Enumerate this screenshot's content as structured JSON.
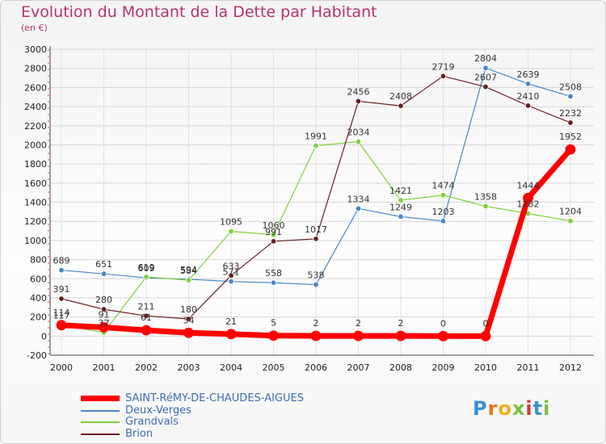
{
  "title": "Evolution du Montant de la Dette par Habitant",
  "subtitle": "(en €)",
  "logo_text": "Proxiti",
  "chart_data": {
    "type": "line",
    "x": [
      "2000",
      "2001",
      "2002",
      "2003",
      "2004",
      "2005",
      "2006",
      "2007",
      "2008",
      "2009",
      "2010",
      "2011",
      "2012"
    ],
    "ylim": [
      -200,
      3000
    ],
    "yticks": [
      -200,
      0,
      200,
      400,
      600,
      800,
      1000,
      1200,
      1400,
      1600,
      1800,
      2000,
      2200,
      2400,
      2600,
      2800,
      3000
    ],
    "grid": true,
    "legend_position": "bottom-left",
    "series": [
      {
        "name": "Deux-Verges",
        "color": "#4a86c8",
        "width": 1.2,
        "values": [
          689,
          651,
          609,
          594,
          571,
          558,
          538,
          1334,
          1249,
          1203,
          2804,
          2639,
          2508
        ],
        "labels": [
          "689",
          "651",
          "609",
          "594",
          "571",
          "558",
          "538",
          "1334",
          "1249",
          "1203",
          "2804",
          "2639",
          "2508"
        ]
      },
      {
        "name": "Grandvals",
        "color": "#7ed03c",
        "width": 1.2,
        "values": [
          117,
          37,
          619,
          584,
          1095,
          1060,
          1991,
          2034,
          1421,
          1474,
          1358,
          1282,
          1204
        ],
        "labels": [
          "117",
          "37",
          "619",
          "584",
          "1095",
          "1060",
          "1991",
          "2034",
          "1421",
          "1474",
          "1358",
          "1282",
          "1204"
        ]
      },
      {
        "name": "Brion",
        "color": "#6b1f1f",
        "width": 1.2,
        "values": [
          391,
          280,
          211,
          180,
          633,
          991,
          1017,
          2456,
          2408,
          2719,
          2607,
          2410,
          2232
        ],
        "labels": [
          "391",
          "280",
          "211",
          "180",
          "633",
          "991",
          "1017",
          "2456",
          "2408",
          "2719",
          "2607",
          "2410",
          "2232"
        ]
      },
      {
        "name": "SAINT-RéMY-DE-CHAUDES-AIGUES",
        "color": "#ff0000",
        "width": 7,
        "values": [
          114,
          91,
          61,
          34,
          21,
          5,
          2,
          2,
          2,
          0,
          0,
          1444,
          1952
        ],
        "labels": [
          "114",
          "91",
          "61",
          "34",
          "21",
          "5",
          "2",
          "2",
          "2",
          "0",
          "0",
          "1444",
          "1952"
        ]
      }
    ]
  },
  "legend": [
    {
      "label": "SAINT-RéMY-DE-CHAUDES-AIGUES",
      "color": "#ff0000",
      "thick": true
    },
    {
      "label": "Deux-Verges",
      "color": "#4a86c8",
      "thick": false
    },
    {
      "label": "Grandvals",
      "color": "#7ed03c",
      "thick": false
    },
    {
      "label": "Brion",
      "color": "#6b1f1f",
      "thick": false
    }
  ]
}
